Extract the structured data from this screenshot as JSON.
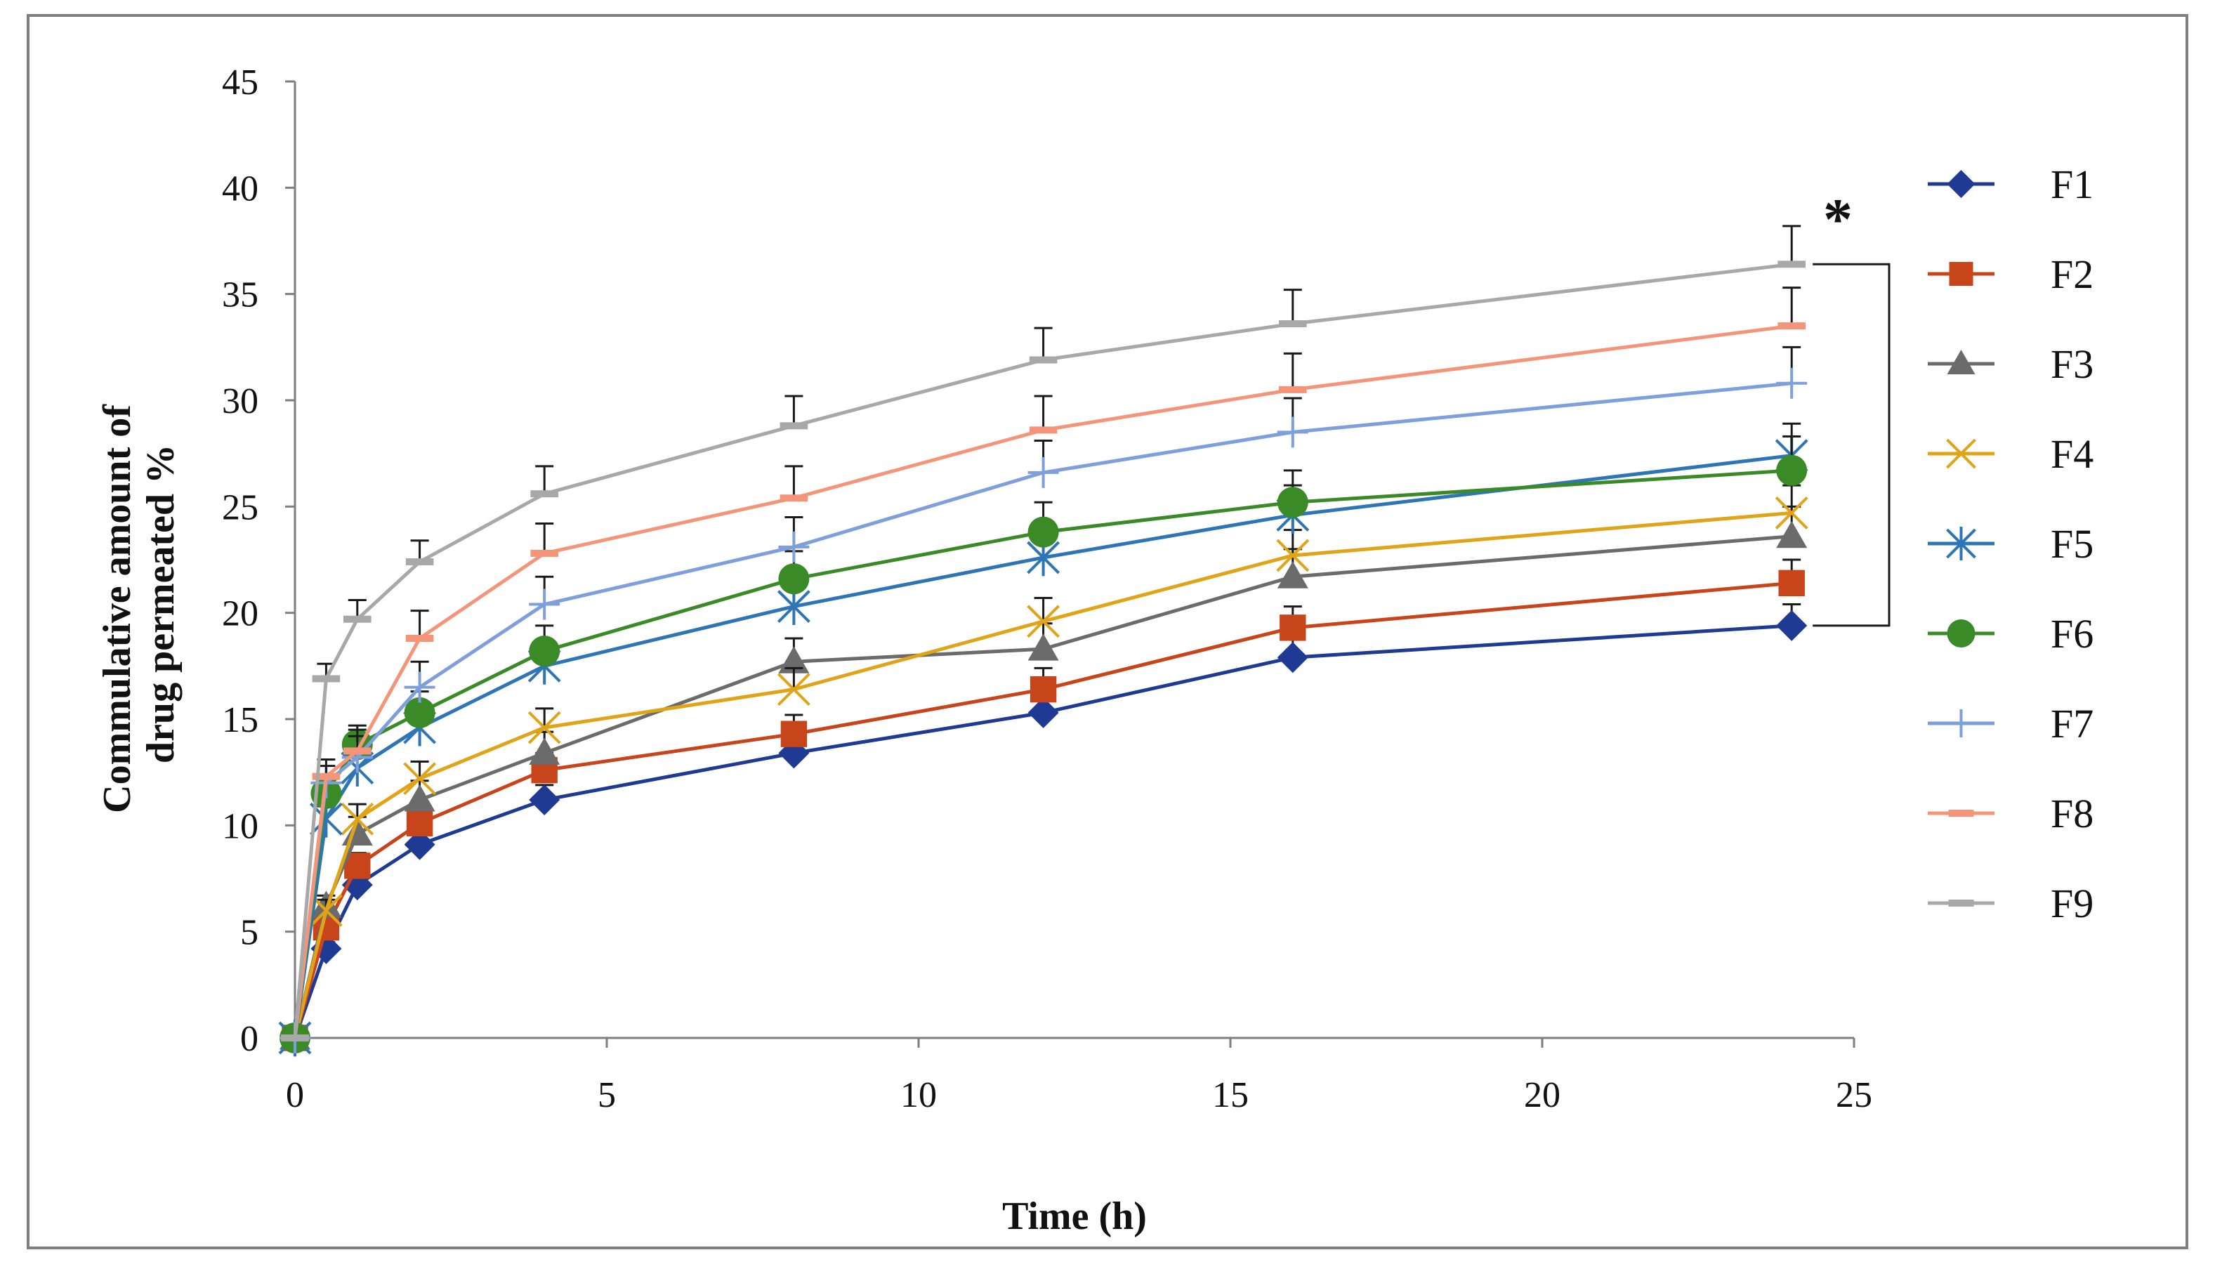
{
  "chart_data": {
    "type": "line",
    "title": "",
    "xlabel": "Time (h)",
    "ylabel_lines": [
      "Commulative  amount of",
      "drug permeated %"
    ],
    "xlim": [
      0,
      25
    ],
    "ylim": [
      0,
      45
    ],
    "xticks": [
      0,
      5,
      10,
      15,
      20,
      25
    ],
    "yticks": [
      0,
      5,
      10,
      15,
      20,
      25,
      30,
      35,
      40,
      45
    ],
    "grid": false,
    "legend_position": "right",
    "x": [
      0,
      0.5,
      1,
      2,
      4,
      8,
      12,
      16,
      24
    ],
    "series": [
      {
        "name": "F1",
        "color": "#1f3a93",
        "marker": "diamond",
        "values": [
          0,
          4.2,
          7.2,
          9.1,
          11.2,
          13.4,
          15.3,
          17.9,
          19.4
        ],
        "errors": [
          0,
          0.3,
          0.5,
          0.6,
          0.7,
          0.8,
          0.9,
          1.0,
          1.0
        ]
      },
      {
        "name": "F2",
        "color": "#c8441a",
        "marker": "square",
        "values": [
          0,
          5.2,
          8.1,
          10.1,
          12.6,
          14.3,
          16.4,
          19.3,
          21.4
        ],
        "errors": [
          0,
          0.4,
          0.6,
          0.7,
          0.8,
          0.9,
          1.0,
          1.0,
          1.1
        ]
      },
      {
        "name": "F3",
        "color": "#6b6b6b",
        "marker": "triangle",
        "values": [
          0,
          6.2,
          9.6,
          11.2,
          13.4,
          17.7,
          18.3,
          21.7,
          23.6
        ],
        "errors": [
          0,
          0.5,
          0.8,
          0.9,
          1.0,
          1.1,
          1.2,
          1.3,
          1.4
        ]
      },
      {
        "name": "F4",
        "color": "#e0a418",
        "marker": "x",
        "values": [
          0,
          6.0,
          10.3,
          12.2,
          14.6,
          16.4,
          19.6,
          22.7,
          24.7
        ],
        "errors": [
          0,
          0.5,
          0.7,
          0.8,
          0.9,
          1.0,
          1.1,
          1.2,
          1.3
        ]
      },
      {
        "name": "F5",
        "color": "#2e75b6",
        "marker": "asterisk",
        "values": [
          0,
          10.3,
          12.7,
          14.6,
          17.5,
          20.3,
          22.6,
          24.6,
          27.4
        ],
        "errors": [
          0,
          0.6,
          0.8,
          0.9,
          1.1,
          1.2,
          1.3,
          1.4,
          1.5
        ]
      },
      {
        "name": "F6",
        "color": "#3a8a27",
        "marker": "circle",
        "values": [
          0,
          11.5,
          13.8,
          15.3,
          18.2,
          21.6,
          23.8,
          25.2,
          26.7
        ],
        "errors": [
          0,
          0.7,
          0.9,
          1.0,
          1.2,
          1.3,
          1.4,
          1.5,
          1.6
        ]
      },
      {
        "name": "F7",
        "color": "#7f9fdc",
        "marker": "plus",
        "values": [
          0,
          12.0,
          13.2,
          16.5,
          20.4,
          23.1,
          26.6,
          28.5,
          30.8
        ],
        "errors": [
          0,
          0.8,
          1.0,
          1.2,
          1.3,
          1.4,
          1.5,
          1.6,
          1.7
        ]
      },
      {
        "name": "F8",
        "color": "#f4957a",
        "marker": "dash",
        "values": [
          0,
          12.3,
          13.5,
          18.8,
          22.8,
          25.4,
          28.6,
          30.5,
          33.5
        ],
        "errors": [
          0,
          0.8,
          1.0,
          1.3,
          1.4,
          1.5,
          1.6,
          1.7,
          1.8
        ]
      },
      {
        "name": "F9",
        "color": "#a8a8a8",
        "marker": "dash",
        "values": [
          0,
          16.9,
          19.7,
          22.4,
          25.6,
          28.8,
          31.9,
          33.6,
          36.4
        ],
        "errors": [
          0,
          0.7,
          0.9,
          1.0,
          1.3,
          1.4,
          1.5,
          1.6,
          1.8
        ]
      }
    ],
    "annotations": [
      {
        "text": "*",
        "type": "significance_bracket",
        "from_series": "F1",
        "to_series": "F9",
        "at_x": 24
      }
    ]
  }
}
